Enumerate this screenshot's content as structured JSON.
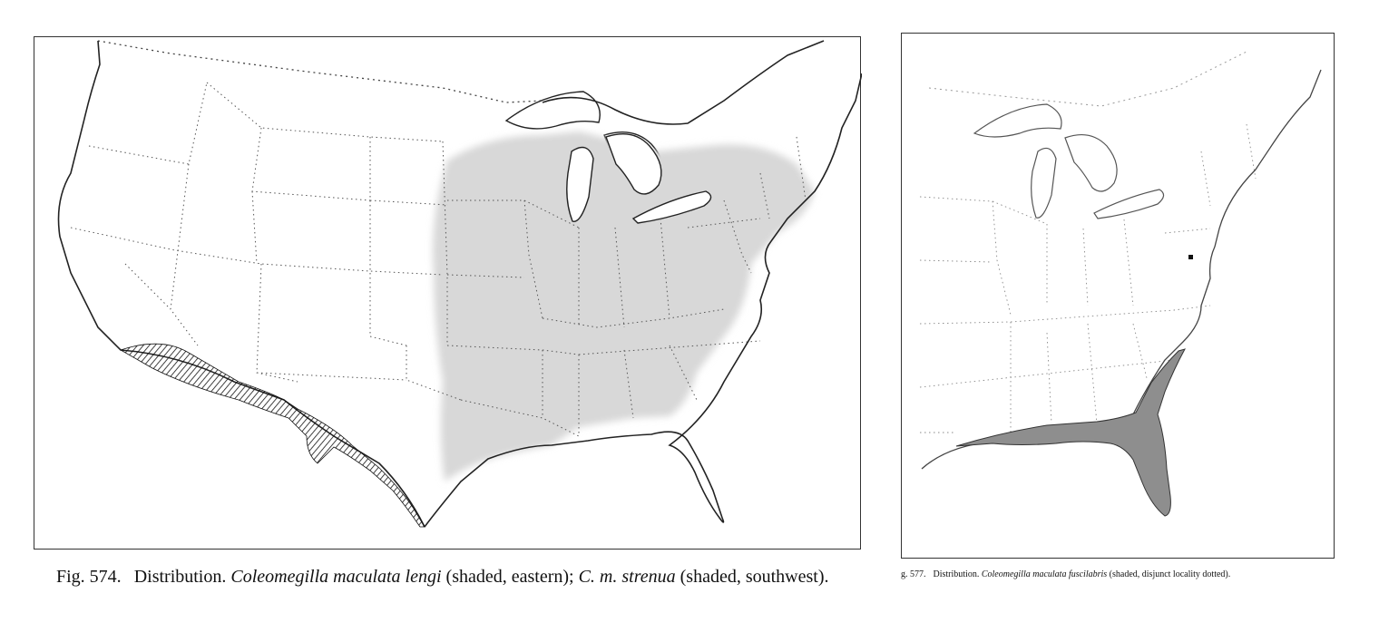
{
  "figure_left": {
    "label": "Fig. 574.",
    "caption_lead": "Distribution.",
    "taxon_1": "Coleomegilla maculata lengi",
    "note_1": " (shaded, eastern); ",
    "taxon_2": "C. m. strenua",
    "note_2": " (shaded, southwest)."
  },
  "figure_right": {
    "label": "g. 577.",
    "caption_lead": "Distribution.",
    "taxon_1": "Coleomegilla maculata fuscilabris",
    "note_1": " (shaded, disjunct locality dotted)."
  },
  "colors": {
    "paper": "#ffffff",
    "outline": "#222222",
    "state_border": "#555555",
    "range_light_shading": "#d6d6d6",
    "range_dark_shading": "#8e8e8e",
    "hatch": "#111111"
  }
}
